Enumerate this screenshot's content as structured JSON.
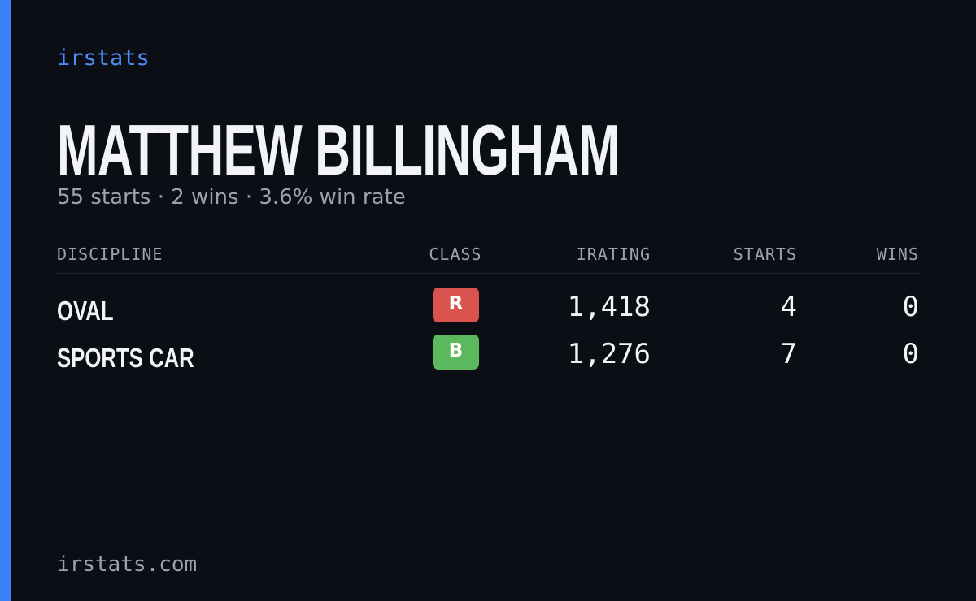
{
  "brand": "irstats",
  "name": "MATTHEW BILLINGHAM",
  "summary": "55 starts · 2 wins · 3.6% win rate",
  "table": {
    "headers": [
      "DISCIPLINE",
      "CLASS",
      "IRATING",
      "STARTS",
      "WINS"
    ],
    "rows": [
      {
        "discipline": "OVAL",
        "class": "R",
        "color": "#d9534f",
        "irating": "1,418",
        "starts": "4",
        "wins": "0"
      },
      {
        "discipline": "SPORTS CAR",
        "class": "B",
        "color": "#5cb85c",
        "irating": "1,276",
        "starts": "7",
        "wins": "0"
      }
    ]
  },
  "footer": "irstats.com"
}
